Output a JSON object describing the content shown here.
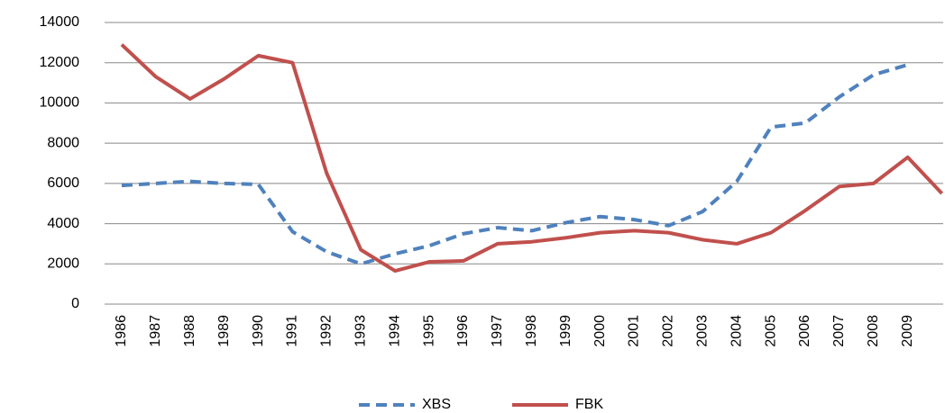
{
  "chart_data": {
    "type": "line",
    "categories": [
      "1986",
      "1987",
      "1988",
      "1989",
      "1990",
      "1991",
      "1992",
      "1993",
      "1994",
      "1995",
      "1996",
      "1997",
      "1998",
      "1999",
      "2000",
      "2001",
      "2002",
      "2003",
      "2004",
      "2005",
      "2006",
      "2007",
      "2008",
      "2009",
      null
    ],
    "series": [
      {
        "name": "XBS",
        "color": "#4f81bd",
        "dashed": true,
        "values": [
          5900,
          6000,
          6100,
          6000,
          5950,
          3600,
          2600,
          2000,
          2500,
          2900,
          3500,
          3800,
          3650,
          4050,
          4350,
          4200,
          3900,
          4600,
          6100,
          8800,
          9000,
          10300,
          11400,
          11900,
          null
        ]
      },
      {
        "name": "FBK",
        "color": "#c0504d",
        "dashed": false,
        "values": [
          12900,
          11300,
          10200,
          11200,
          12350,
          12000,
          6500,
          2700,
          1650,
          2100,
          2150,
          3000,
          3100,
          3300,
          3550,
          3650,
          3550,
          3200,
          3000,
          3550,
          4650,
          5850,
          6000,
          7300,
          5500
        ]
      }
    ],
    "ylim": [
      0,
      14000
    ],
    "yticks": [
      0,
      2000,
      4000,
      6000,
      8000,
      10000,
      12000,
      14000
    ],
    "grid": true,
    "legend": "bottom"
  }
}
